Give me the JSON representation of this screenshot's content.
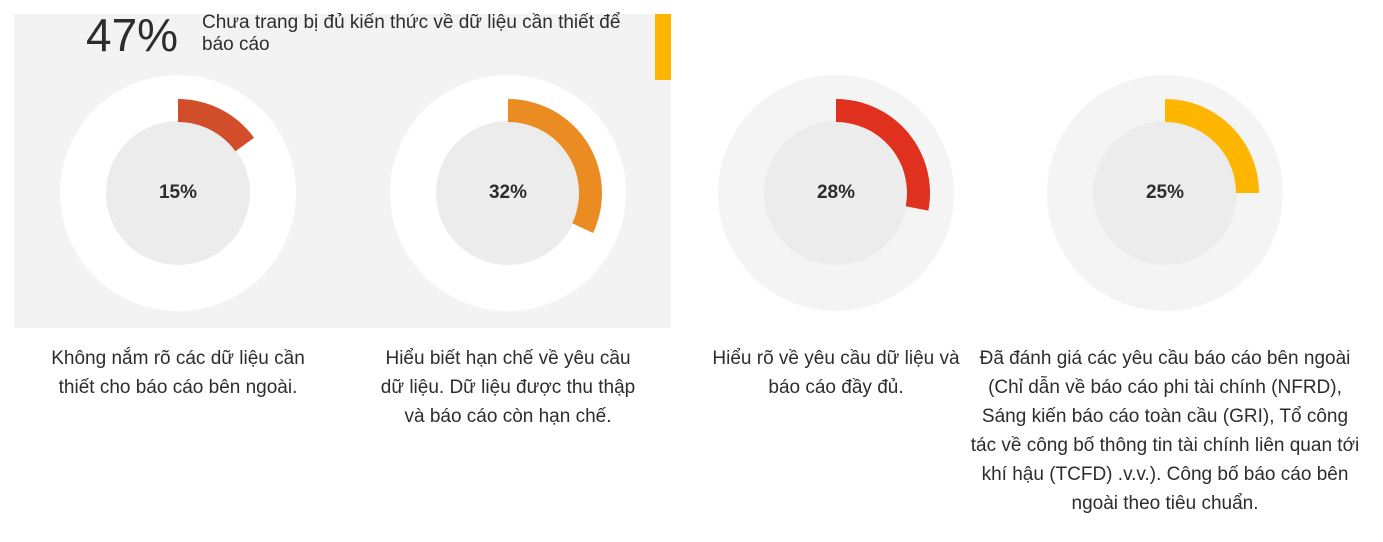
{
  "headline": {
    "value": "47%",
    "text": "Chưa trang bị đủ kiến thức về dữ liệu cần thiết để báo cáo"
  },
  "chart_data": [
    {
      "type": "donut",
      "values": [
        15
      ],
      "value_labels": [
        "15%"
      ],
      "color": "#d24d2a",
      "description": "Không nắm rõ các dữ liệu cần thiết cho báo cáo bên ngoài."
    },
    {
      "type": "donut",
      "values": [
        32
      ],
      "value_labels": [
        "32%"
      ],
      "color": "#eb8c23",
      "description": "Hiểu biết hạn chế về yêu cầu dữ liệu. Dữ liệu được thu thập và báo cáo còn hạn chế."
    },
    {
      "type": "donut",
      "values": [
        28
      ],
      "value_labels": [
        "28%"
      ],
      "color": "#e0301e",
      "description": "Hiểu rõ về yêu cầu dữ liệu và báo cáo đầy đủ."
    },
    {
      "type": "donut",
      "values": [
        25
      ],
      "value_labels": [
        "25%"
      ],
      "color": "#ffb600",
      "description": "Đã đánh giá các yêu cầu báo cáo bên ngoài (Chỉ dẫn về báo cáo phi tài chính (NFRD), Sáng kiến báo cáo toàn cầu (GRI), Tổ công tác về công bố thông tin tài chính liên quan tới khí hậu (TCFD) .v.v.). Công bố báo cáo bên ngoài theo tiêu chuẩn."
    }
  ]
}
